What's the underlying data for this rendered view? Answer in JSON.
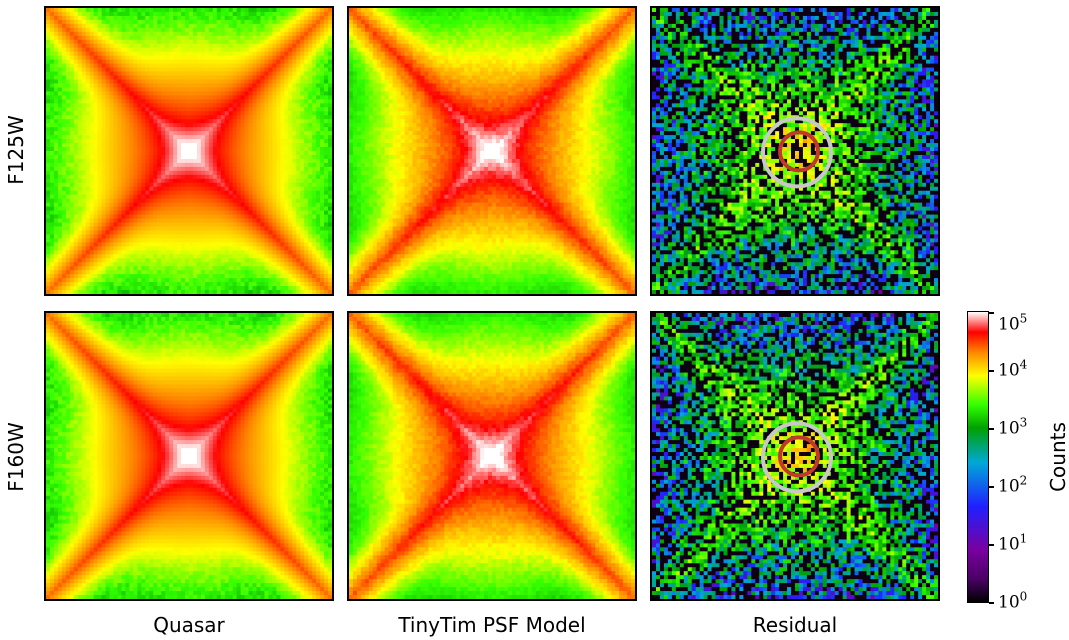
{
  "rows": [
    {
      "label": "F125W",
      "band": "F125W"
    },
    {
      "label": "F160W",
      "band": "F160W"
    }
  ],
  "columns": [
    {
      "label": "Quasar",
      "kind": "quasar"
    },
    {
      "label": "TinyTim PSF Model",
      "kind": "model"
    },
    {
      "label": "Residual",
      "kind": "residual"
    }
  ],
  "colorbar": {
    "title": "Counts",
    "ticks": [
      {
        "base": "10",
        "exp": "0"
      },
      {
        "base": "10",
        "exp": "1"
      },
      {
        "base": "10",
        "exp": "2"
      },
      {
        "base": "10",
        "exp": "3"
      },
      {
        "base": "10",
        "exp": "4"
      },
      {
        "base": "10",
        "exp": "5"
      }
    ],
    "colors": [
      "#000000",
      "#4a0066",
      "#7a00a0",
      "#2020ff",
      "#00a8d8",
      "#00a000",
      "#33ff00",
      "#ffff00",
      "#ff8800",
      "#ff0000",
      "#ffffff"
    ]
  },
  "aperture_colors": {
    "outer": "#c8c8c8",
    "inner": "#c0392b"
  }
}
